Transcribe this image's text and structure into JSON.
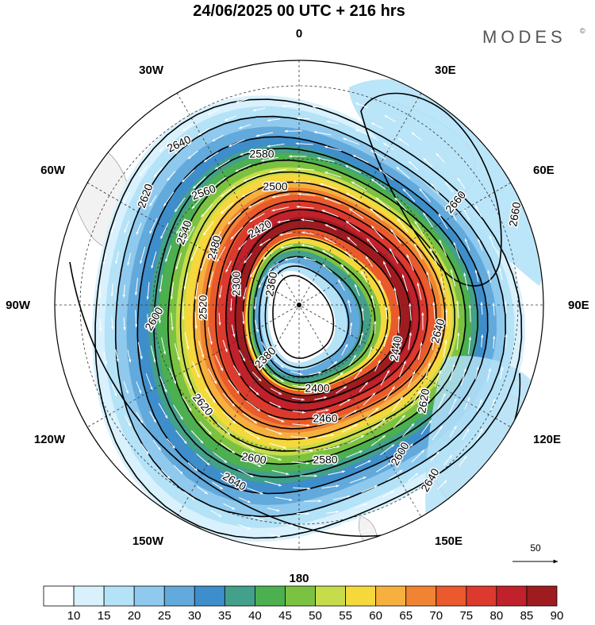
{
  "title": "24/06/2025  00 UTC  + 216 hrs",
  "logo": "MODES",
  "logo_mark": "©",
  "longitudes": {
    "top": "0",
    "top_right": "30E",
    "right_upper": "60E",
    "right": "90E",
    "right_lower": "120E",
    "bottom_right": "150E",
    "bottom": "180",
    "bottom_left": "150W",
    "left_lower": "120W",
    "left": "90W",
    "left_upper": "60W",
    "top_left": "30W"
  },
  "contour_labels": [
    "2640",
    "2580",
    "2560",
    "2500",
    "2620",
    "2540",
    "2480",
    "2420",
    "2360",
    "2300",
    "2520",
    "2600",
    "2380",
    "2400",
    "2440",
    "2460",
    "2580",
    "2620",
    "2600",
    "2640",
    "2660",
    "2660",
    "2640",
    "2620",
    "2600",
    "2640"
  ],
  "vector_scale": {
    "value": "50"
  },
  "colorbar": {
    "ticks": [
      "10",
      "15",
      "20",
      "25",
      "30",
      "35",
      "40",
      "45",
      "50",
      "55",
      "60",
      "65",
      "70",
      "75",
      "80",
      "85",
      "90"
    ],
    "colors": [
      "#ffffff",
      "#d8f1fd",
      "#b4e2f7",
      "#8fcaee",
      "#62a9dc",
      "#3e8ecb",
      "#43a08a",
      "#4caf50",
      "#7cc242",
      "#c7dc4a",
      "#f5d93c",
      "#f6b03e",
      "#f08433",
      "#ea5a2c",
      "#dc3a2e",
      "#c0212b",
      "#9e1b20"
    ]
  },
  "colors": {
    "land": "#f2f2f2",
    "grid": "#333333",
    "contour": "#000000"
  }
}
